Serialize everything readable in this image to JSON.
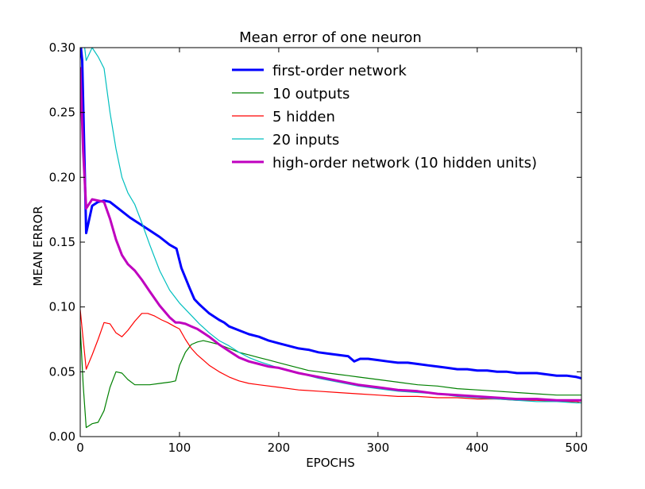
{
  "chart_data": {
    "type": "line",
    "title": "Mean error of one neuron",
    "xlabel": "EPOCHS",
    "ylabel": "MEAN ERROR",
    "xlim": [
      0,
      505
    ],
    "ylim": [
      0,
      0.3
    ],
    "x_ticks": [
      "0",
      "100",
      "200",
      "300",
      "400",
      "500"
    ],
    "y_ticks": [
      "0.00",
      "0.05",
      "0.10",
      "0.15",
      "0.20",
      "0.25",
      "0.30"
    ],
    "grid": false,
    "legend_position": "top-right",
    "series": [
      {
        "name": "first-order network",
        "color": "#0000ff",
        "width": "thick",
        "x": [
          0,
          2,
          6,
          12,
          18,
          24,
          30,
          40,
          50,
          60,
          70,
          80,
          90,
          97,
          102,
          110,
          115,
          120,
          130,
          140,
          145,
          150,
          160,
          170,
          180,
          190,
          200,
          210,
          220,
          230,
          240,
          250,
          260,
          270,
          276,
          282,
          290,
          300,
          310,
          320,
          330,
          340,
          350,
          360,
          370,
          380,
          390,
          400,
          410,
          420,
          430,
          440,
          450,
          460,
          470,
          480,
          490,
          500,
          505
        ],
        "y": [
          0.305,
          0.29,
          0.157,
          0.178,
          0.181,
          0.182,
          0.181,
          0.175,
          0.169,
          0.164,
          0.159,
          0.154,
          0.148,
          0.145,
          0.13,
          0.115,
          0.106,
          0.102,
          0.095,
          0.09,
          0.088,
          0.085,
          0.082,
          0.079,
          0.077,
          0.074,
          0.072,
          0.07,
          0.068,
          0.067,
          0.065,
          0.064,
          0.063,
          0.062,
          0.058,
          0.06,
          0.06,
          0.059,
          0.058,
          0.057,
          0.057,
          0.056,
          0.055,
          0.054,
          0.053,
          0.052,
          0.052,
          0.051,
          0.051,
          0.05,
          0.05,
          0.049,
          0.049,
          0.049,
          0.048,
          0.047,
          0.047,
          0.046,
          0.045
        ]
      },
      {
        "name": "10 outputs",
        "color": "#008000",
        "width": "thin",
        "x": [
          0,
          3,
          6,
          12,
          18,
          24,
          30,
          36,
          42,
          48,
          55,
          62,
          70,
          80,
          90,
          96,
          100,
          106,
          112,
          118,
          124,
          130,
          140,
          150,
          160,
          170,
          180,
          190,
          200,
          210,
          220,
          230,
          240,
          250,
          260,
          270,
          280,
          290,
          300,
          320,
          340,
          360,
          380,
          400,
          420,
          440,
          460,
          480,
          500,
          505
        ],
        "y": [
          0.085,
          0.04,
          0.007,
          0.01,
          0.011,
          0.02,
          0.038,
          0.05,
          0.049,
          0.044,
          0.04,
          0.04,
          0.04,
          0.041,
          0.042,
          0.043,
          0.055,
          0.065,
          0.071,
          0.073,
          0.074,
          0.073,
          0.071,
          0.068,
          0.065,
          0.063,
          0.061,
          0.059,
          0.057,
          0.055,
          0.053,
          0.051,
          0.05,
          0.049,
          0.048,
          0.047,
          0.046,
          0.045,
          0.044,
          0.042,
          0.04,
          0.039,
          0.037,
          0.036,
          0.035,
          0.034,
          0.033,
          0.032,
          0.032,
          0.032
        ]
      },
      {
        "name": "5 hidden",
        "color": "#ff0000",
        "width": "thin",
        "x": [
          0,
          3,
          6,
          12,
          18,
          24,
          30,
          36,
          42,
          48,
          55,
          62,
          68,
          75,
          82,
          88,
          95,
          100,
          106,
          112,
          118,
          124,
          130,
          140,
          150,
          160,
          170,
          180,
          200,
          220,
          240,
          260,
          280,
          300,
          320,
          340,
          360,
          380,
          400,
          420,
          440,
          460,
          480,
          500,
          505
        ],
        "y": [
          0.098,
          0.075,
          0.052,
          0.063,
          0.075,
          0.088,
          0.087,
          0.08,
          0.077,
          0.082,
          0.089,
          0.095,
          0.095,
          0.093,
          0.09,
          0.088,
          0.085,
          0.083,
          0.075,
          0.068,
          0.063,
          0.059,
          0.055,
          0.05,
          0.046,
          0.043,
          0.041,
          0.04,
          0.038,
          0.036,
          0.035,
          0.034,
          0.033,
          0.032,
          0.031,
          0.031,
          0.03,
          0.03,
          0.029,
          0.029,
          0.028,
          0.028,
          0.027,
          0.027,
          0.026
        ]
      },
      {
        "name": "20 inputs",
        "color": "#00bfbf",
        "width": "thin",
        "x": [
          0,
          3,
          6,
          12,
          18,
          24,
          30,
          36,
          42,
          48,
          55,
          62,
          70,
          80,
          90,
          100,
          110,
          120,
          130,
          140,
          150,
          160,
          170,
          180,
          200,
          220,
          240,
          260,
          280,
          300,
          320,
          340,
          360,
          380,
          400,
          420,
          440,
          460,
          480,
          500,
          505
        ],
        "y": [
          0.305,
          0.31,
          0.29,
          0.3,
          0.293,
          0.284,
          0.25,
          0.222,
          0.2,
          0.188,
          0.179,
          0.165,
          0.148,
          0.128,
          0.113,
          0.103,
          0.095,
          0.087,
          0.08,
          0.074,
          0.07,
          0.065,
          0.061,
          0.058,
          0.053,
          0.049,
          0.045,
          0.042,
          0.039,
          0.037,
          0.035,
          0.034,
          0.033,
          0.031,
          0.03,
          0.029,
          0.028,
          0.027,
          0.027,
          0.026,
          0.026
        ]
      },
      {
        "name": "high-order network (10 hidden units)",
        "color": "#bf00bf",
        "width": "thick",
        "x": [
          0,
          3,
          6,
          12,
          18,
          24,
          30,
          36,
          42,
          48,
          55,
          62,
          70,
          80,
          90,
          96,
          100,
          106,
          112,
          118,
          124,
          130,
          140,
          150,
          160,
          170,
          180,
          190,
          200,
          220,
          240,
          260,
          280,
          300,
          320,
          340,
          360,
          380,
          400,
          420,
          440,
          460,
          480,
          500,
          505
        ],
        "y": [
          0.285,
          0.22,
          0.176,
          0.183,
          0.182,
          0.181,
          0.168,
          0.152,
          0.14,
          0.133,
          0.128,
          0.121,
          0.112,
          0.101,
          0.092,
          0.088,
          0.088,
          0.087,
          0.085,
          0.083,
          0.08,
          0.077,
          0.071,
          0.066,
          0.061,
          0.058,
          0.056,
          0.054,
          0.053,
          0.049,
          0.046,
          0.043,
          0.04,
          0.038,
          0.036,
          0.035,
          0.033,
          0.032,
          0.031,
          0.03,
          0.029,
          0.029,
          0.028,
          0.028,
          0.028
        ]
      }
    ]
  }
}
